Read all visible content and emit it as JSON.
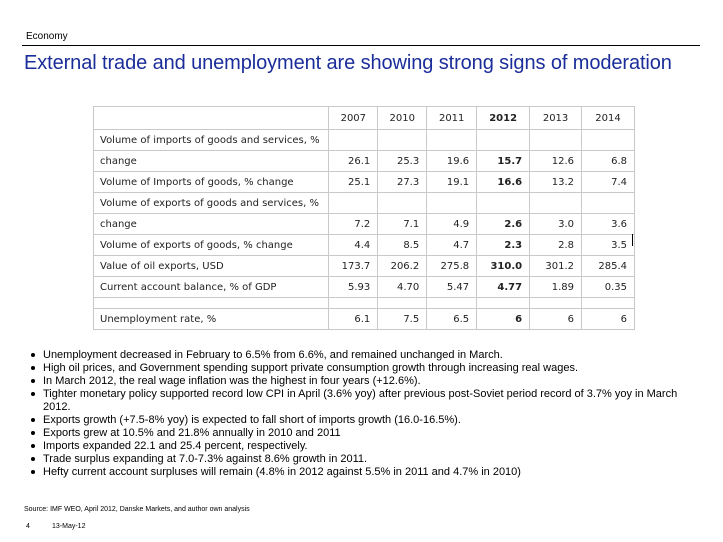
{
  "header": {
    "section": "Economy",
    "title": "External trade and unemployment are showing strong signs of moderation"
  },
  "table": {
    "columns": [
      "2007",
      "2010",
      "2011",
      "2012",
      "2013",
      "2014"
    ],
    "rows": [
      {
        "label": "Volume of imports of goods and services, %",
        "values": [
          "",
          "",
          "",
          "",
          "",
          ""
        ]
      },
      {
        "label": "change",
        "values": [
          "26.1",
          "25.3",
          "19.6",
          "15.7",
          "12.6",
          "6.8"
        ]
      },
      {
        "label": "Volume of Imports of goods, % change",
        "values": [
          "25.1",
          "27.3",
          "19.1",
          "16.6",
          "13.2",
          "7.4"
        ]
      },
      {
        "label": "Volume of exports of goods and services, %",
        "values": [
          "",
          "",
          "",
          "",
          "",
          ""
        ]
      },
      {
        "label": "change",
        "values": [
          "7.2",
          "7.1",
          "4.9",
          "2.6",
          "3.0",
          "3.6"
        ]
      },
      {
        "label": "Volume of exports of goods, % change",
        "values": [
          "4.4",
          "8.5",
          "4.7",
          "2.3",
          "2.8",
          "3.5"
        ]
      },
      {
        "label": "Value of oil exports, USD",
        "values": [
          "173.7",
          "206.2",
          "275.8",
          "310.0",
          "301.2",
          "285.4"
        ]
      },
      {
        "label": "Current account balance, % of GDP",
        "values": [
          "5.93",
          "4.70",
          "5.47",
          "4.77",
          "1.89",
          "0.35"
        ]
      },
      {
        "label": "",
        "values": [
          "",
          "",
          "",
          "",
          "",
          ""
        ]
      },
      {
        "label": "Unemployment rate, %",
        "values": [
          "6.1",
          "7.5",
          "6.5",
          "6",
          "6",
          "6"
        ]
      }
    ]
  },
  "bullets": [
    "Unemployment decreased in February to 6.5% from 6.6%, and remained unchanged in March.",
    "High oil prices, and Government spending support private consumption growth through increasing real wages.",
    "In March 2012, the real wage inflation was the highest in four years (+12.6%).",
    "Tighter monetary policy supported record low CPI in April (3.6% yoy) after previous post-Soviet period record of 3.7% yoy in March 2012.",
    "Exports growth (+7.5-8% yoy) is expected to fall short of imports growth (16.0-16.5%).",
    "Exports grew at 10.5% and 21.8% annually in 2010 and 2011",
    "Imports expanded 22.1 and 25.4 percent, respectively.",
    "Trade surplus expanding at 7.0-7.3% against 8.6% growth in 2011.",
    "Hefty current account surpluses will remain (4.8% in 2012 against 5.5% in 2011 and 4.7% in 2010)"
  ],
  "footer": {
    "source": "Source:  IMF WEO, April 2012, Danske Markets, and author own analysis",
    "page": "4",
    "date": "13-May-12"
  }
}
